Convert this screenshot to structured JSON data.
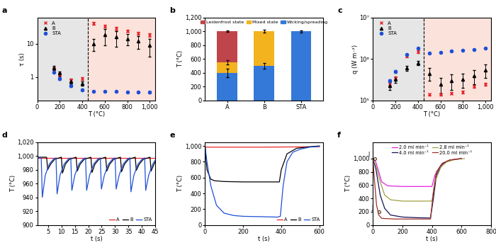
{
  "chart_data": [
    {
      "type": "scatter",
      "title": "a",
      "xlabel": "T (°C)",
      "ylabel": "τ (s)",
      "log": "y",
      "threshold": 450,
      "legend": "upper left",
      "xlim": [
        0,
        1050
      ],
      "xticks": [
        0,
        200,
        400,
        600,
        800,
        {
          "value": 1000,
          "label": "1,000"
        }
      ],
      "ylim": [
        0.2,
        60
      ],
      "yticks": [
        1,
        10
      ],
      "x": [
        150,
        200,
        300,
        400,
        500,
        600,
        700,
        800,
        900,
        1000
      ],
      "series": [
        {
          "name": "A",
          "color": "#e8262c",
          "marker": "x",
          "values": [
            1.8,
            1.2,
            0.8,
            0.9,
            40,
            33,
            28,
            24,
            20,
            18
          ],
          "errors": [
            0.2,
            0.15,
            0.1,
            0.1,
            4,
            3,
            3,
            2,
            2,
            2
          ]
        },
        {
          "name": "B",
          "color": "#000000",
          "marker": "triangle",
          "values": [
            1.9,
            1.3,
            0.75,
            0.65,
            10,
            18,
            16,
            14,
            12,
            9
          ],
          "errors": [
            0.3,
            0.2,
            0.1,
            0.1,
            4,
            9,
            8,
            5,
            5,
            5
          ]
        },
        {
          "name": "STA",
          "color": "#1f4fd6",
          "marker": "circle",
          "values": [
            1.4,
            0.9,
            0.55,
            0.42,
            0.38,
            0.38,
            0.37,
            0.36,
            0.36,
            0.35
          ],
          "errors": [
            0.1,
            0.1,
            0.05,
            0.03,
            0.02,
            0.02,
            0.02,
            0.02,
            0.02,
            0.02
          ]
        }
      ]
    },
    {
      "type": "bar",
      "title": "b",
      "ylabel": "T (°C)",
      "stacked": true,
      "legend": "upper center",
      "categories": [
        "A",
        "B",
        "STA"
      ],
      "ylim": [
        0,
        1200
      ],
      "yticks": [
        0,
        200,
        400,
        600,
        800,
        {
          "value": 1000,
          "label": "1,000"
        },
        {
          "value": 1200,
          "label": "1,200"
        }
      ],
      "series": [
        {
          "name": "Wicking/spreading",
          "color": "#3478d8",
          "values": [
            400,
            500,
            1000
          ],
          "errors": [
            60,
            40,
            15
          ]
        },
        {
          "name": "Mixed state",
          "color": "#f2b31e",
          "values": [
            150,
            500,
            0
          ],
          "errors": [
            30,
            20,
            0
          ]
        },
        {
          "name": "Leidenfrost state",
          "color": "#c0454a",
          "values": [
            450,
            0,
            0
          ],
          "errors": [
            10,
            0,
            0
          ]
        }
      ]
    },
    {
      "type": "scatter",
      "title": "c",
      "xlabel": "T (°C)",
      "ylabel": "q (W m⁻²)",
      "log": "y",
      "threshold": 450,
      "legend": "upper left",
      "xlim": [
        0,
        1050
      ],
      "xticks": [
        0,
        200,
        400,
        600,
        800,
        {
          "value": 1000,
          "label": "1,000"
        }
      ],
      "ylim": [
        100000,
        10000000
      ],
      "yticks": [
        {
          "value": 100000,
          "label": "10⁵"
        },
        {
          "value": 1000000,
          "label": "10⁶"
        },
        {
          "value": 10000000,
          "label": "10⁷"
        }
      ],
      "x": [
        150,
        200,
        300,
        400,
        500,
        600,
        700,
        800,
        900,
        1000
      ],
      "series": [
        {
          "name": "A",
          "color": "#e8262c",
          "marker": "x",
          "values": [
            250000,
            350000,
            1200000,
            1500000,
            140000,
            140000,
            150000,
            160000,
            220000,
            250000
          ],
          "errors": [
            30000,
            30000,
            100000,
            100000,
            10000,
            10000,
            10000,
            10000,
            20000,
            20000
          ]
        },
        {
          "name": "B",
          "color": "#000000",
          "marker": "triangle",
          "values": [
            230000,
            320000,
            600000,
            800000,
            450000,
            250000,
            300000,
            320000,
            400000,
            550000
          ],
          "errors": [
            50000,
            50000,
            80000,
            100000,
            150000,
            100000,
            120000,
            120000,
            150000,
            200000
          ]
        },
        {
          "name": "STA",
          "color": "#1f4fd6",
          "marker": "circle",
          "values": [
            300000,
            500000,
            1300000,
            1800000,
            1400000,
            1450000,
            1550000,
            1600000,
            1700000,
            1800000
          ],
          "errors": [
            20000,
            30000,
            50000,
            50000,
            50000,
            50000,
            50000,
            50000,
            50000,
            50000
          ]
        }
      ]
    },
    {
      "type": "line",
      "title": "d",
      "xlabel": "t (s)",
      "ylabel": "T (°C)",
      "legend": "lower right",
      "xlim": [
        1,
        45
      ],
      "xticks": [
        5,
        10,
        15,
        20,
        25,
        30,
        35,
        40,
        45
      ],
      "ylim": [
        900,
        1020
      ],
      "yticks": [
        900,
        920,
        940,
        960,
        980,
        {
          "value": 1000,
          "label": "1,000"
        },
        {
          "value": 1020,
          "label": "1,020"
        }
      ],
      "series": [
        {
          "name": "A",
          "color": "#e8262c",
          "x": [
            1,
            45
          ],
          "values": [
            997,
            997
          ]
        },
        {
          "name": "B",
          "color": "#000000",
          "x": [
            1,
            4.5,
            4.9,
            6,
            7.5,
            10,
            10.4,
            11.5,
            13,
            15.5,
            15.9,
            17,
            18.5,
            21,
            21.4,
            22.5,
            24,
            26.5,
            26.9,
            28,
            29.5,
            32,
            32.4,
            33.5,
            35,
            37.5,
            37.9,
            39,
            40.5,
            43,
            43.4,
            44.5,
            45
          ],
          "values": [
            998,
            998,
            980,
            988,
            995,
            998,
            975,
            988,
            995,
            998,
            978,
            988,
            995,
            998,
            976,
            988,
            995,
            998,
            978,
            988,
            995,
            998,
            977,
            988,
            995,
            998,
            979,
            988,
            995,
            998,
            978,
            988,
            992
          ]
        },
        {
          "name": "STA",
          "color": "#1f4fd6",
          "x": [
            1,
            2.5,
            2.9,
            4,
            5.5,
            7,
            8,
            8.4,
            9.5,
            11,
            12.5,
            13.5,
            13.9,
            15,
            16.5,
            18,
            19,
            19.4,
            20.5,
            22,
            23.5,
            24.5,
            24.9,
            26,
            27.5,
            29,
            30,
            30.4,
            31.5,
            33,
            34.5,
            35.5,
            35.9,
            37,
            38.5,
            40,
            41,
            41.4,
            42.5,
            44,
            45
          ],
          "values": [
            997,
            997,
            940,
            972,
            988,
            995,
            997,
            945,
            972,
            988,
            995,
            997,
            950,
            972,
            988,
            995,
            997,
            950,
            972,
            988,
            995,
            997,
            952,
            972,
            988,
            995,
            997,
            952,
            972,
            988,
            995,
            997,
            948,
            972,
            988,
            995,
            997,
            950,
            972,
            988,
            994
          ]
        }
      ]
    },
    {
      "type": "line",
      "title": "e",
      "xlabel": "t (s)",
      "ylabel": "T (°C)",
      "legend": "lower right",
      "xlim": [
        0,
        620
      ],
      "xticks": [
        0,
        200,
        400,
        600
      ],
      "ylim": [
        0,
        1050
      ],
      "yticks": [
        0,
        200,
        400,
        600,
        800,
        {
          "value": 1000,
          "label": "1,000"
        }
      ],
      "series": [
        {
          "name": "A",
          "color": "#e8262c",
          "x": [
            0,
            300,
            600
          ],
          "values": [
            985,
            985,
            990
          ]
        },
        {
          "name": "B",
          "color": "#000000",
          "x": [
            0,
            10,
            30,
            50,
            100,
            200,
            300,
            390,
            400,
            430,
            480,
            550,
            600
          ],
          "values": [
            1000,
            700,
            580,
            560,
            550,
            545,
            545,
            545,
            700,
            900,
            970,
            990,
            1000
          ]
        },
        {
          "name": "STA",
          "color": "#1f4fd6",
          "x": [
            0,
            10,
            30,
            60,
            100,
            150,
            200,
            300,
            380,
            395,
            410,
            430,
            460,
            500,
            550,
            600
          ],
          "values": [
            1000,
            800,
            500,
            250,
            150,
            120,
            110,
            105,
            100,
            110,
            500,
            800,
            920,
            960,
            985,
            995
          ]
        }
      ]
    },
    {
      "type": "line",
      "title": "f",
      "xlabel": "t (s)",
      "ylabel": "T (°C)",
      "legend": "upper center",
      "xlim": [
        0,
        800
      ],
      "xticks": [
        0,
        200,
        400,
        600,
        800
      ],
      "ylim": [
        0,
        1250
      ],
      "yticks": [
        0,
        200,
        400,
        600,
        800,
        {
          "value": 1000,
          "label": "1,000"
        }
      ],
      "annotations": [
        {
          "text": "I",
          "x": 12,
          "y": 1000
        },
        {
          "text": "J",
          "x": 40,
          "y": 200
        }
      ],
      "series": [
        {
          "name": "2.0 ml min⁻¹",
          "color": "#e025e0",
          "x": [
            0,
            20,
            40,
            60,
            100,
            200,
            300,
            400,
            420,
            460,
            500,
            550,
            600
          ],
          "values": [
            1000,
            950,
            800,
            650,
            590,
            580,
            580,
            580,
            750,
            900,
            960,
            990,
            1000
          ]
        },
        {
          "name": "4.0 ml min⁻¹",
          "color": "#14145a",
          "x": [
            0,
            20,
            50,
            80,
            120,
            200,
            300,
            390,
            410,
            430,
            470,
            520,
            600
          ],
          "values": [
            1000,
            850,
            450,
            250,
            150,
            120,
            110,
            105,
            400,
            750,
            920,
            975,
            1000
          ]
        },
        {
          "name": "2.8 ml min⁻¹",
          "color": "#a0a040",
          "x": [
            0,
            20,
            50,
            80,
            120,
            200,
            300,
            400,
            420,
            460,
            500,
            560,
            620
          ],
          "values": [
            1000,
            900,
            650,
            450,
            380,
            360,
            360,
            360,
            650,
            870,
            950,
            990,
            1000
          ]
        },
        {
          "name": "20.0 ml min⁻¹",
          "color": "#a0302a",
          "x": [
            0,
            10,
            25,
            40,
            60,
            150,
            300,
            390,
            410,
            430,
            470,
            520,
            600
          ],
          "values": [
            1000,
            700,
            300,
            150,
            100,
            90,
            90,
            90,
            500,
            800,
            930,
            980,
            1000
          ]
        }
      ]
    }
  ]
}
